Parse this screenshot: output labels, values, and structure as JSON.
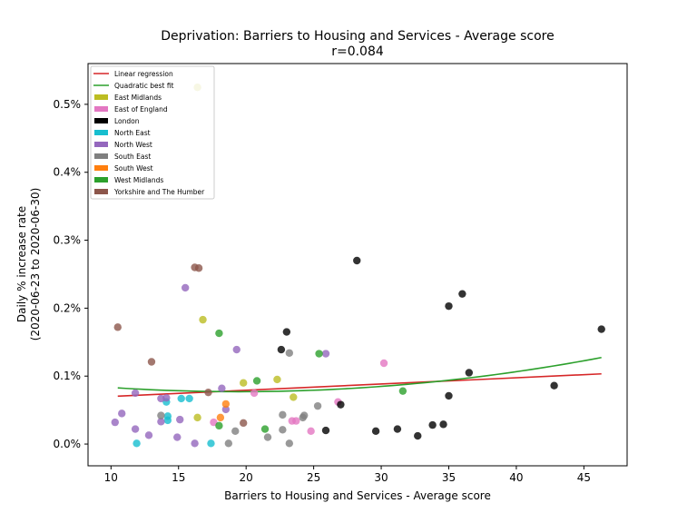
{
  "chart_data": {
    "type": "scatter",
    "title": "Deprivation: Barriers to Housing and Services - Average score",
    "subtitle": "r=0.084",
    "xlabel": "Barriers to Housing and Services - Average score",
    "ylabel": "Daily % increase rate",
    "ylabel2": "(2020-06-23 to 2020-06-30)",
    "xlim": [
      8.3,
      48.2
    ],
    "ylim": [
      -0.032,
      0.56
    ],
    "xticks": [
      10,
      15,
      20,
      25,
      30,
      35,
      40,
      45
    ],
    "xtick_labels": [
      "10",
      "15",
      "20",
      "25",
      "30",
      "35",
      "40",
      "45"
    ],
    "yticks": [
      0.0,
      0.1,
      0.2,
      0.3,
      0.4,
      0.5
    ],
    "ytick_labels": [
      "0.0%",
      "0.1%",
      "0.2%",
      "0.3%",
      "0.4%",
      "0.5%"
    ],
    "grid": false,
    "legend_position": "top-left",
    "legend": [
      {
        "label": "Linear regression",
        "kind": "line",
        "color": "#d62728"
      },
      {
        "label": "Quadratic best fit",
        "kind": "line",
        "color": "#2ca02c"
      },
      {
        "label": "East Midlands",
        "kind": "patch",
        "color": "#bcbd22"
      },
      {
        "label": "East of England",
        "kind": "patch",
        "color": "#e377c2"
      },
      {
        "label": "London",
        "kind": "patch",
        "color": "#000000"
      },
      {
        "label": "North East",
        "kind": "patch",
        "color": "#17becf"
      },
      {
        "label": "North West",
        "kind": "patch",
        "color": "#9467bd"
      },
      {
        "label": "South East",
        "kind": "patch",
        "color": "#7f7f7f"
      },
      {
        "label": "South West",
        "kind": "patch",
        "color": "#ff7f0e"
      },
      {
        "label": "West Midlands",
        "kind": "patch",
        "color": "#2ca02c"
      },
      {
        "label": "Yorkshire and The Humber",
        "kind": "patch",
        "color": "#8c564b"
      }
    ],
    "linear_fit": {
      "x": [
        10.5,
        46.3
      ],
      "y": [
        0.0705,
        0.1033
      ],
      "color": "#d62728"
    },
    "quadratic_fit": {
      "x": [
        10.5,
        46.3
      ],
      "coefficients": [
        0.1034,
        -0.00271,
        6.97e-05
      ],
      "color": "#2ca02c"
    },
    "series": [
      {
        "name": "East Midlands",
        "color": "#bcbd22",
        "points": [
          [
            16.4,
            0.525
          ],
          [
            16.8,
            0.183
          ],
          [
            16.4,
            0.039
          ],
          [
            19.8,
            0.09
          ],
          [
            22.3,
            0.095
          ],
          [
            23.5,
            0.069
          ]
        ]
      },
      {
        "name": "East of England",
        "color": "#e377c2",
        "points": [
          [
            17.6,
            0.032
          ],
          [
            20.6,
            0.075
          ],
          [
            23.4,
            0.034
          ],
          [
            23.7,
            0.034
          ],
          [
            24.8,
            0.019
          ],
          [
            26.8,
            0.062
          ],
          [
            30.2,
            0.119
          ]
        ]
      },
      {
        "name": "London",
        "color": "#000000",
        "points": [
          [
            22.6,
            0.139
          ],
          [
            23.0,
            0.165
          ],
          [
            27.0,
            0.058
          ],
          [
            28.2,
            0.27
          ],
          [
            29.6,
            0.019
          ],
          [
            31.2,
            0.022
          ],
          [
            32.7,
            0.012
          ],
          [
            33.8,
            0.028
          ],
          [
            34.6,
            0.029
          ],
          [
            35.0,
            0.203
          ],
          [
            35.0,
            0.071
          ],
          [
            36.0,
            0.221
          ],
          [
            36.5,
            0.105
          ],
          [
            42.8,
            0.086
          ],
          [
            46.3,
            0.169
          ],
          [
            25.9,
            0.02
          ]
        ]
      },
      {
        "name": "North East",
        "color": "#17becf",
        "points": [
          [
            11.9,
            0.001
          ],
          [
            14.1,
            0.062
          ],
          [
            14.2,
            0.041
          ],
          [
            14.2,
            0.035
          ],
          [
            15.2,
            0.067
          ],
          [
            15.8,
            0.067
          ],
          [
            17.4,
            0.001
          ]
        ]
      },
      {
        "name": "North West",
        "color": "#9467bd",
        "points": [
          [
            10.3,
            0.032
          ],
          [
            10.8,
            0.045
          ],
          [
            11.8,
            0.075
          ],
          [
            11.8,
            0.022
          ],
          [
            12.8,
            0.013
          ],
          [
            13.7,
            0.067
          ],
          [
            13.7,
            0.033
          ],
          [
            14.1,
            0.068
          ],
          [
            14.9,
            0.01
          ],
          [
            15.1,
            0.036
          ],
          [
            15.5,
            0.23
          ],
          [
            16.2,
            0.001
          ],
          [
            18.2,
            0.082
          ],
          [
            18.5,
            0.051
          ],
          [
            19.3,
            0.139
          ],
          [
            25.9,
            0.133
          ]
        ]
      },
      {
        "name": "South East",
        "color": "#7f7f7f",
        "points": [
          [
            13.7,
            0.042
          ],
          [
            18.7,
            0.001
          ],
          [
            19.2,
            0.019
          ],
          [
            21.6,
            0.01
          ],
          [
            22.7,
            0.043
          ],
          [
            22.7,
            0.021
          ],
          [
            23.2,
            0.001
          ],
          [
            23.2,
            0.134
          ],
          [
            24.2,
            0.039
          ],
          [
            24.3,
            0.042
          ],
          [
            25.3,
            0.056
          ]
        ]
      },
      {
        "name": "South West",
        "color": "#ff7f0e",
        "points": [
          [
            18.1,
            0.039
          ],
          [
            18.5,
            0.059
          ]
        ]
      },
      {
        "name": "West Midlands",
        "color": "#2ca02c",
        "points": [
          [
            18.0,
            0.163
          ],
          [
            18.0,
            0.027
          ],
          [
            20.8,
            0.093
          ],
          [
            21.4,
            0.022
          ],
          [
            25.4,
            0.133
          ],
          [
            31.6,
            0.078
          ]
        ]
      },
      {
        "name": "Yorkshire and The Humber",
        "color": "#8c564b",
        "points": [
          [
            10.5,
            0.172
          ],
          [
            13.0,
            0.121
          ],
          [
            16.2,
            0.26
          ],
          [
            16.5,
            0.259
          ],
          [
            17.2,
            0.076
          ],
          [
            19.8,
            0.031
          ]
        ]
      }
    ]
  }
}
